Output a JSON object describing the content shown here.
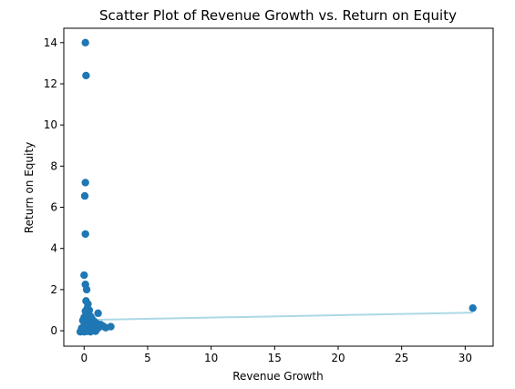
{
  "chart_data": {
    "type": "scatter",
    "title": "Scatter Plot of Revenue Growth vs. Return on Equity",
    "xlabel": "Revenue Growth",
    "ylabel": "Return on Equity",
    "xlim": [
      -1.6,
      32.2
    ],
    "ylim": [
      -0.75,
      14.7
    ],
    "xticks": [
      0,
      5,
      10,
      15,
      20,
      25,
      30
    ],
    "yticks": [
      0,
      2,
      4,
      6,
      8,
      10,
      12,
      14
    ],
    "grid": false,
    "point_color": "#1f77b4",
    "trendline_color": "#add8e6",
    "points": [
      {
        "x": 0.1,
        "y": 14.0
      },
      {
        "x": 0.15,
        "y": 12.4
      },
      {
        "x": 0.1,
        "y": 7.2
      },
      {
        "x": 0.05,
        "y": 6.55
      },
      {
        "x": 0.1,
        "y": 4.7
      },
      {
        "x": 0.0,
        "y": 2.7
      },
      {
        "x": 0.1,
        "y": 2.25
      },
      {
        "x": 0.2,
        "y": 2.0
      },
      {
        "x": 0.15,
        "y": 1.45
      },
      {
        "x": 0.3,
        "y": 1.3
      },
      {
        "x": 0.25,
        "y": 1.1
      },
      {
        "x": 0.4,
        "y": 1.0
      },
      {
        "x": 0.1,
        "y": 0.95
      },
      {
        "x": 0.3,
        "y": 0.85
      },
      {
        "x": 1.1,
        "y": 0.85
      },
      {
        "x": 0.2,
        "y": 0.75
      },
      {
        "x": 0.5,
        "y": 0.7
      },
      {
        "x": 0.0,
        "y": 0.65
      },
      {
        "x": 0.6,
        "y": 0.6
      },
      {
        "x": 0.3,
        "y": 0.55
      },
      {
        "x": -0.1,
        "y": 0.5
      },
      {
        "x": 0.8,
        "y": 0.45
      },
      {
        "x": 0.1,
        "y": 0.4
      },
      {
        "x": 0.4,
        "y": 0.35
      },
      {
        "x": 1.0,
        "y": 0.35
      },
      {
        "x": 0.2,
        "y": 0.3
      },
      {
        "x": 0.7,
        "y": 0.3
      },
      {
        "x": 1.3,
        "y": 0.3
      },
      {
        "x": 0.0,
        "y": 0.25
      },
      {
        "x": 0.5,
        "y": 0.25
      },
      {
        "x": 0.9,
        "y": 0.25
      },
      {
        "x": 1.5,
        "y": 0.22
      },
      {
        "x": 2.1,
        "y": 0.2
      },
      {
        "x": 0.3,
        "y": 0.2
      },
      {
        "x": 1.2,
        "y": 0.18
      },
      {
        "x": 0.6,
        "y": 0.15
      },
      {
        "x": 1.7,
        "y": 0.15
      },
      {
        "x": -0.2,
        "y": 0.12
      },
      {
        "x": 0.8,
        "y": 0.1
      },
      {
        "x": 1.0,
        "y": 0.08
      },
      {
        "x": 0.4,
        "y": 0.05
      },
      {
        "x": 0.1,
        "y": 0.02
      },
      {
        "x": 0.6,
        "y": 0.0
      },
      {
        "x": 0.9,
        "y": -0.02
      },
      {
        "x": 0.2,
        "y": -0.03
      },
      {
        "x": -0.3,
        "y": -0.05
      },
      {
        "x": 0.5,
        "y": -0.05
      },
      {
        "x": 0.0,
        "y": -0.05
      },
      {
        "x": 30.6,
        "y": 1.1
      }
    ],
    "trendline": {
      "x": [
        -0.2,
        30.6
      ],
      "y": [
        0.52,
        0.88
      ]
    }
  }
}
